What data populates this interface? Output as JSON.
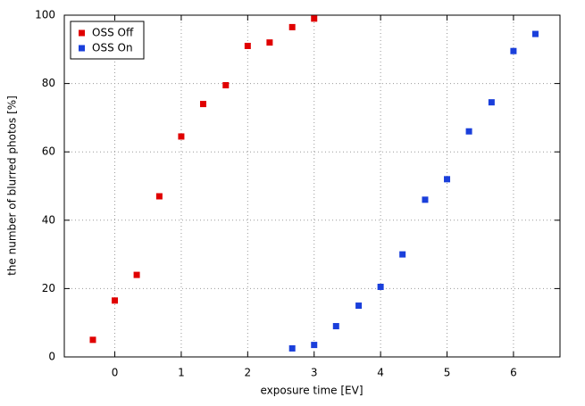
{
  "chart_data": {
    "type": "scatter",
    "xlabel": "exposure time [EV]",
    "ylabel": "the number of blurred photos [%]",
    "xlim": [
      -0.76,
      6.7
    ],
    "ylim": [
      0,
      100
    ],
    "xticks": [
      0,
      1,
      2,
      3,
      4,
      5,
      6
    ],
    "yticks": [
      0,
      20,
      40,
      60,
      80,
      100
    ],
    "grid": true,
    "legend": "upper left",
    "series": [
      {
        "name": "OSS Off",
        "color": "#e00000",
        "x": [
          -0.33,
          0,
          0.33,
          0.67,
          1,
          1.33,
          1.67,
          2,
          2.33,
          2.67,
          3
        ],
        "values": [
          5,
          16.5,
          24,
          47,
          64.5,
          74,
          79.5,
          91,
          92,
          96.5,
          99
        ]
      },
      {
        "name": "OSS On",
        "color": "#1a3fdb",
        "x": [
          2.67,
          3,
          3.33,
          3.67,
          4,
          4.33,
          4.67,
          5,
          5.33,
          5.67,
          6,
          6.33
        ],
        "values": [
          2.5,
          3.5,
          9,
          15,
          20.5,
          30,
          46,
          52,
          66,
          74.5,
          89.5,
          94.5
        ]
      }
    ]
  }
}
